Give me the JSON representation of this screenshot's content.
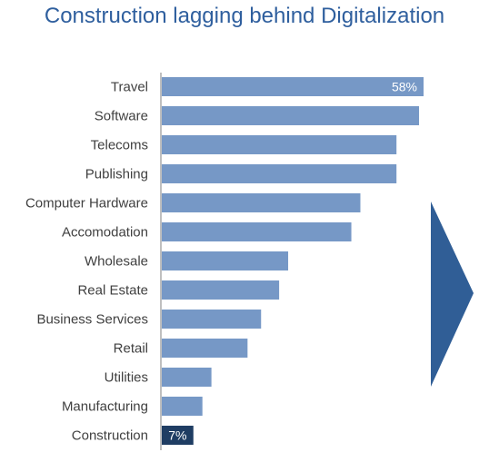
{
  "title": "Construction lagging behind Digitalization",
  "colors": {
    "bar": "#7698c6",
    "highlight_bar": "#1f3d63",
    "arrow": "#305e96",
    "axis": "#7f7f7f",
    "title": "#2f5f9e"
  },
  "chart_data": {
    "type": "bar",
    "orientation": "horizontal",
    "title": "Construction lagging behind Digitalization",
    "categories": [
      "Travel",
      "Software",
      "Telecoms",
      "Publishing",
      "Computer Hardware",
      "Accomodation",
      "Wholesale",
      "Real Estate",
      "Business Services",
      "Retail",
      "Utilities",
      "Manufacturing",
      "Construction"
    ],
    "values": [
      58,
      57,
      52,
      52,
      44,
      42,
      28,
      26,
      22,
      19,
      11,
      9,
      7
    ],
    "data_labels": [
      {
        "category": "Travel",
        "text": "58%"
      },
      {
        "category": "Construction",
        "text": "7%"
      }
    ],
    "highlight": "Construction",
    "xlim": [
      0,
      60
    ],
    "grid": false,
    "legend": "none"
  },
  "decoration": {
    "arrow_icon": "right-arrow-icon"
  }
}
